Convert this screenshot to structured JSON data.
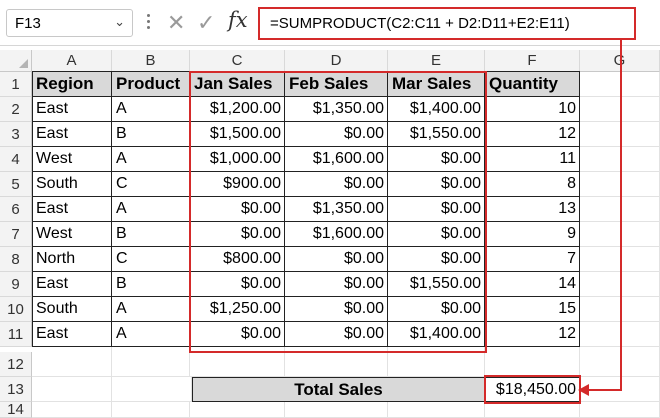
{
  "name_box": {
    "value": "F13"
  },
  "formula_bar": {
    "fx_label": "fx",
    "formula": "=SUMPRODUCT(C2:C11 + D2:D11+E2:E11)"
  },
  "columns": [
    "A",
    "B",
    "C",
    "D",
    "E",
    "F",
    "G"
  ],
  "rows": [
    "1",
    "2",
    "3",
    "4",
    "5",
    "6",
    "7",
    "8",
    "9",
    "10",
    "11",
    "12",
    "13",
    "14"
  ],
  "table": {
    "headers": [
      "Region",
      "Product",
      "Jan Sales",
      "Feb Sales",
      "Mar Sales",
      "Quantity"
    ],
    "rows": [
      [
        "East",
        "A",
        "$1,200.00",
        "$1,350.00",
        "$1,400.00",
        "10"
      ],
      [
        "East",
        "B",
        "$1,500.00",
        "$0.00",
        "$1,550.00",
        "12"
      ],
      [
        "West",
        "A",
        "$1,000.00",
        "$1,600.00",
        "$0.00",
        "11"
      ],
      [
        "South",
        "C",
        "$900.00",
        "$0.00",
        "$0.00",
        "8"
      ],
      [
        "East",
        "A",
        "$0.00",
        "$1,350.00",
        "$0.00",
        "13"
      ],
      [
        "West",
        "B",
        "$0.00",
        "$1,600.00",
        "$0.00",
        "9"
      ],
      [
        "North",
        "C",
        "$800.00",
        "$0.00",
        "$0.00",
        "7"
      ],
      [
        "East",
        "B",
        "$0.00",
        "$0.00",
        "$1,550.00",
        "14"
      ],
      [
        "South",
        "A",
        "$1,250.00",
        "$0.00",
        "$0.00",
        "15"
      ],
      [
        "East",
        "A",
        "$0.00",
        "$0.00",
        "$1,400.00",
        "12"
      ]
    ]
  },
  "total": {
    "label": "Total Sales",
    "value": "$18,450.00"
  },
  "colors": {
    "highlight": "#d42a2a",
    "header_fill": "#d9d9d9"
  },
  "icons": [
    "chevron-down-icon",
    "cancel-icon",
    "enter-icon",
    "function-icon"
  ]
}
